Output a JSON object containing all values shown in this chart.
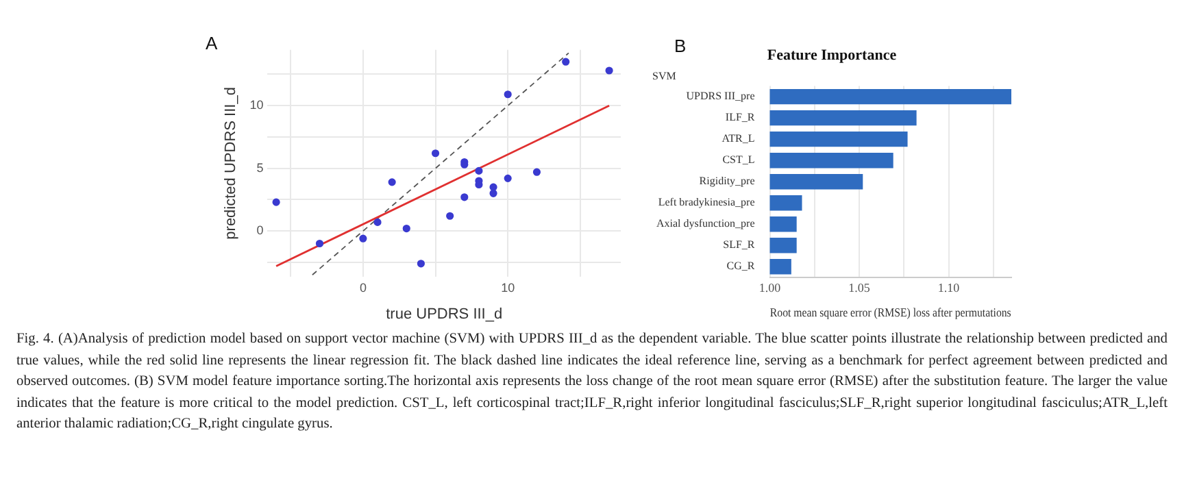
{
  "chart_data": [
    {
      "type": "scatter",
      "xlabel": "true UPDRS III_d",
      "ylabel": "predicted UPDRS III_d",
      "annotations": [
        "A",
        "Fig. 4. (A)Analysis of prediction model based on support vector machine (SVM) with UPDRS III_d as the dependent variable. The blue scatter points illustrate the relationship between predicted and true values, while the red solid line represents the linear regression fit. The black dashed line indicates the ideal reference line, serving as a benchmark for perfect agreement between predicted and observed outcomes. (B) SVM model feature importance sorting.The horizontal axis represents the loss change of the root mean square error (RMSE) after the substitution feature. The larger the value indicates that the feature is more critical to the model prediction. CST_L, left corticospinal tract;ILF_R,right inferior longitudinal fasciculus;SLF_R,right superior longitudinal fasciculus;ATR_L,left anterior thalamic radiation;CG_R,right cingulate gyrus."
      ],
      "xlim": [
        -6.6,
        17.8
      ],
      "ylim": [
        -3.65,
        14.45
      ],
      "xticks": [
        {
          "value": -5,
          "label": null
        },
        0,
        {
          "value": 5,
          "label": null
        },
        10,
        {
          "value": 15,
          "label": null
        }
      ],
      "yticks": [
        {
          "value": -2.5,
          "label": null
        },
        0,
        {
          "value": 2.5,
          "label": null
        },
        5,
        {
          "value": 7.5,
          "label": null
        },
        10,
        {
          "value": 12.5,
          "label": null
        }
      ],
      "grid": true,
      "series": [
        {
          "type": "scatter",
          "color": "#3a3ad0",
          "marker": "circle",
          "x": [
            -6,
            -3,
            0,
            1,
            2,
            3,
            4,
            5,
            6,
            7,
            7,
            7,
            8,
            8,
            8,
            9,
            9,
            10,
            10,
            12,
            14,
            17
          ],
          "values": [
            2.3,
            -1.0,
            -0.6,
            0.7,
            3.9,
            0.2,
            -2.6,
            6.2,
            1.2,
            5.5,
            5.3,
            2.7,
            4.8,
            4.0,
            3.7,
            3.5,
            3.0,
            10.9,
            4.2,
            4.7,
            13.5,
            12.8
          ]
        },
        {
          "type": "line",
          "color": "#e03030",
          "line_style": "solid",
          "marker": "none",
          "x": [
            -6,
            17
          ],
          "values": [
            -2.8,
            10.0
          ]
        },
        {
          "type": "line",
          "color": "#555555",
          "line_style": "dashed",
          "marker": "none",
          "x": [
            -3.5,
            14.2
          ],
          "values": [
            -3.5,
            14.2
          ]
        }
      ]
    },
    {
      "type": "bar",
      "orientation": "horizontal",
      "title": "Feature Importance",
      "subtitle": "SVM",
      "xlabel": "Root mean square error (RMSE) loss after permutations",
      "annotations": [
        "B"
      ],
      "categories": [
        "UPDRS III_pre",
        "ILF_R",
        "ATR_L",
        "CST_L",
        "Rigidity_pre",
        "Left bradykinesia_pre",
        "Axial dysfunction_pre",
        "SLF_R",
        "CG_R"
      ],
      "values": [
        1.135,
        1.082,
        1.077,
        1.069,
        1.052,
        1.018,
        1.015,
        1.015,
        1.012
      ],
      "color": "#2f6cc0",
      "xlim": [
        1.0,
        1.135
      ],
      "xticks": [
        {
          "value": 1.0,
          "label": "1.00"
        },
        {
          "value": 1.025,
          "label": null
        },
        1.05,
        {
          "value": 1.075,
          "label": null
        },
        {
          "value": 1.1,
          "label": "1.10"
        },
        {
          "value": 1.125,
          "label": null
        }
      ],
      "grid": "x"
    }
  ]
}
